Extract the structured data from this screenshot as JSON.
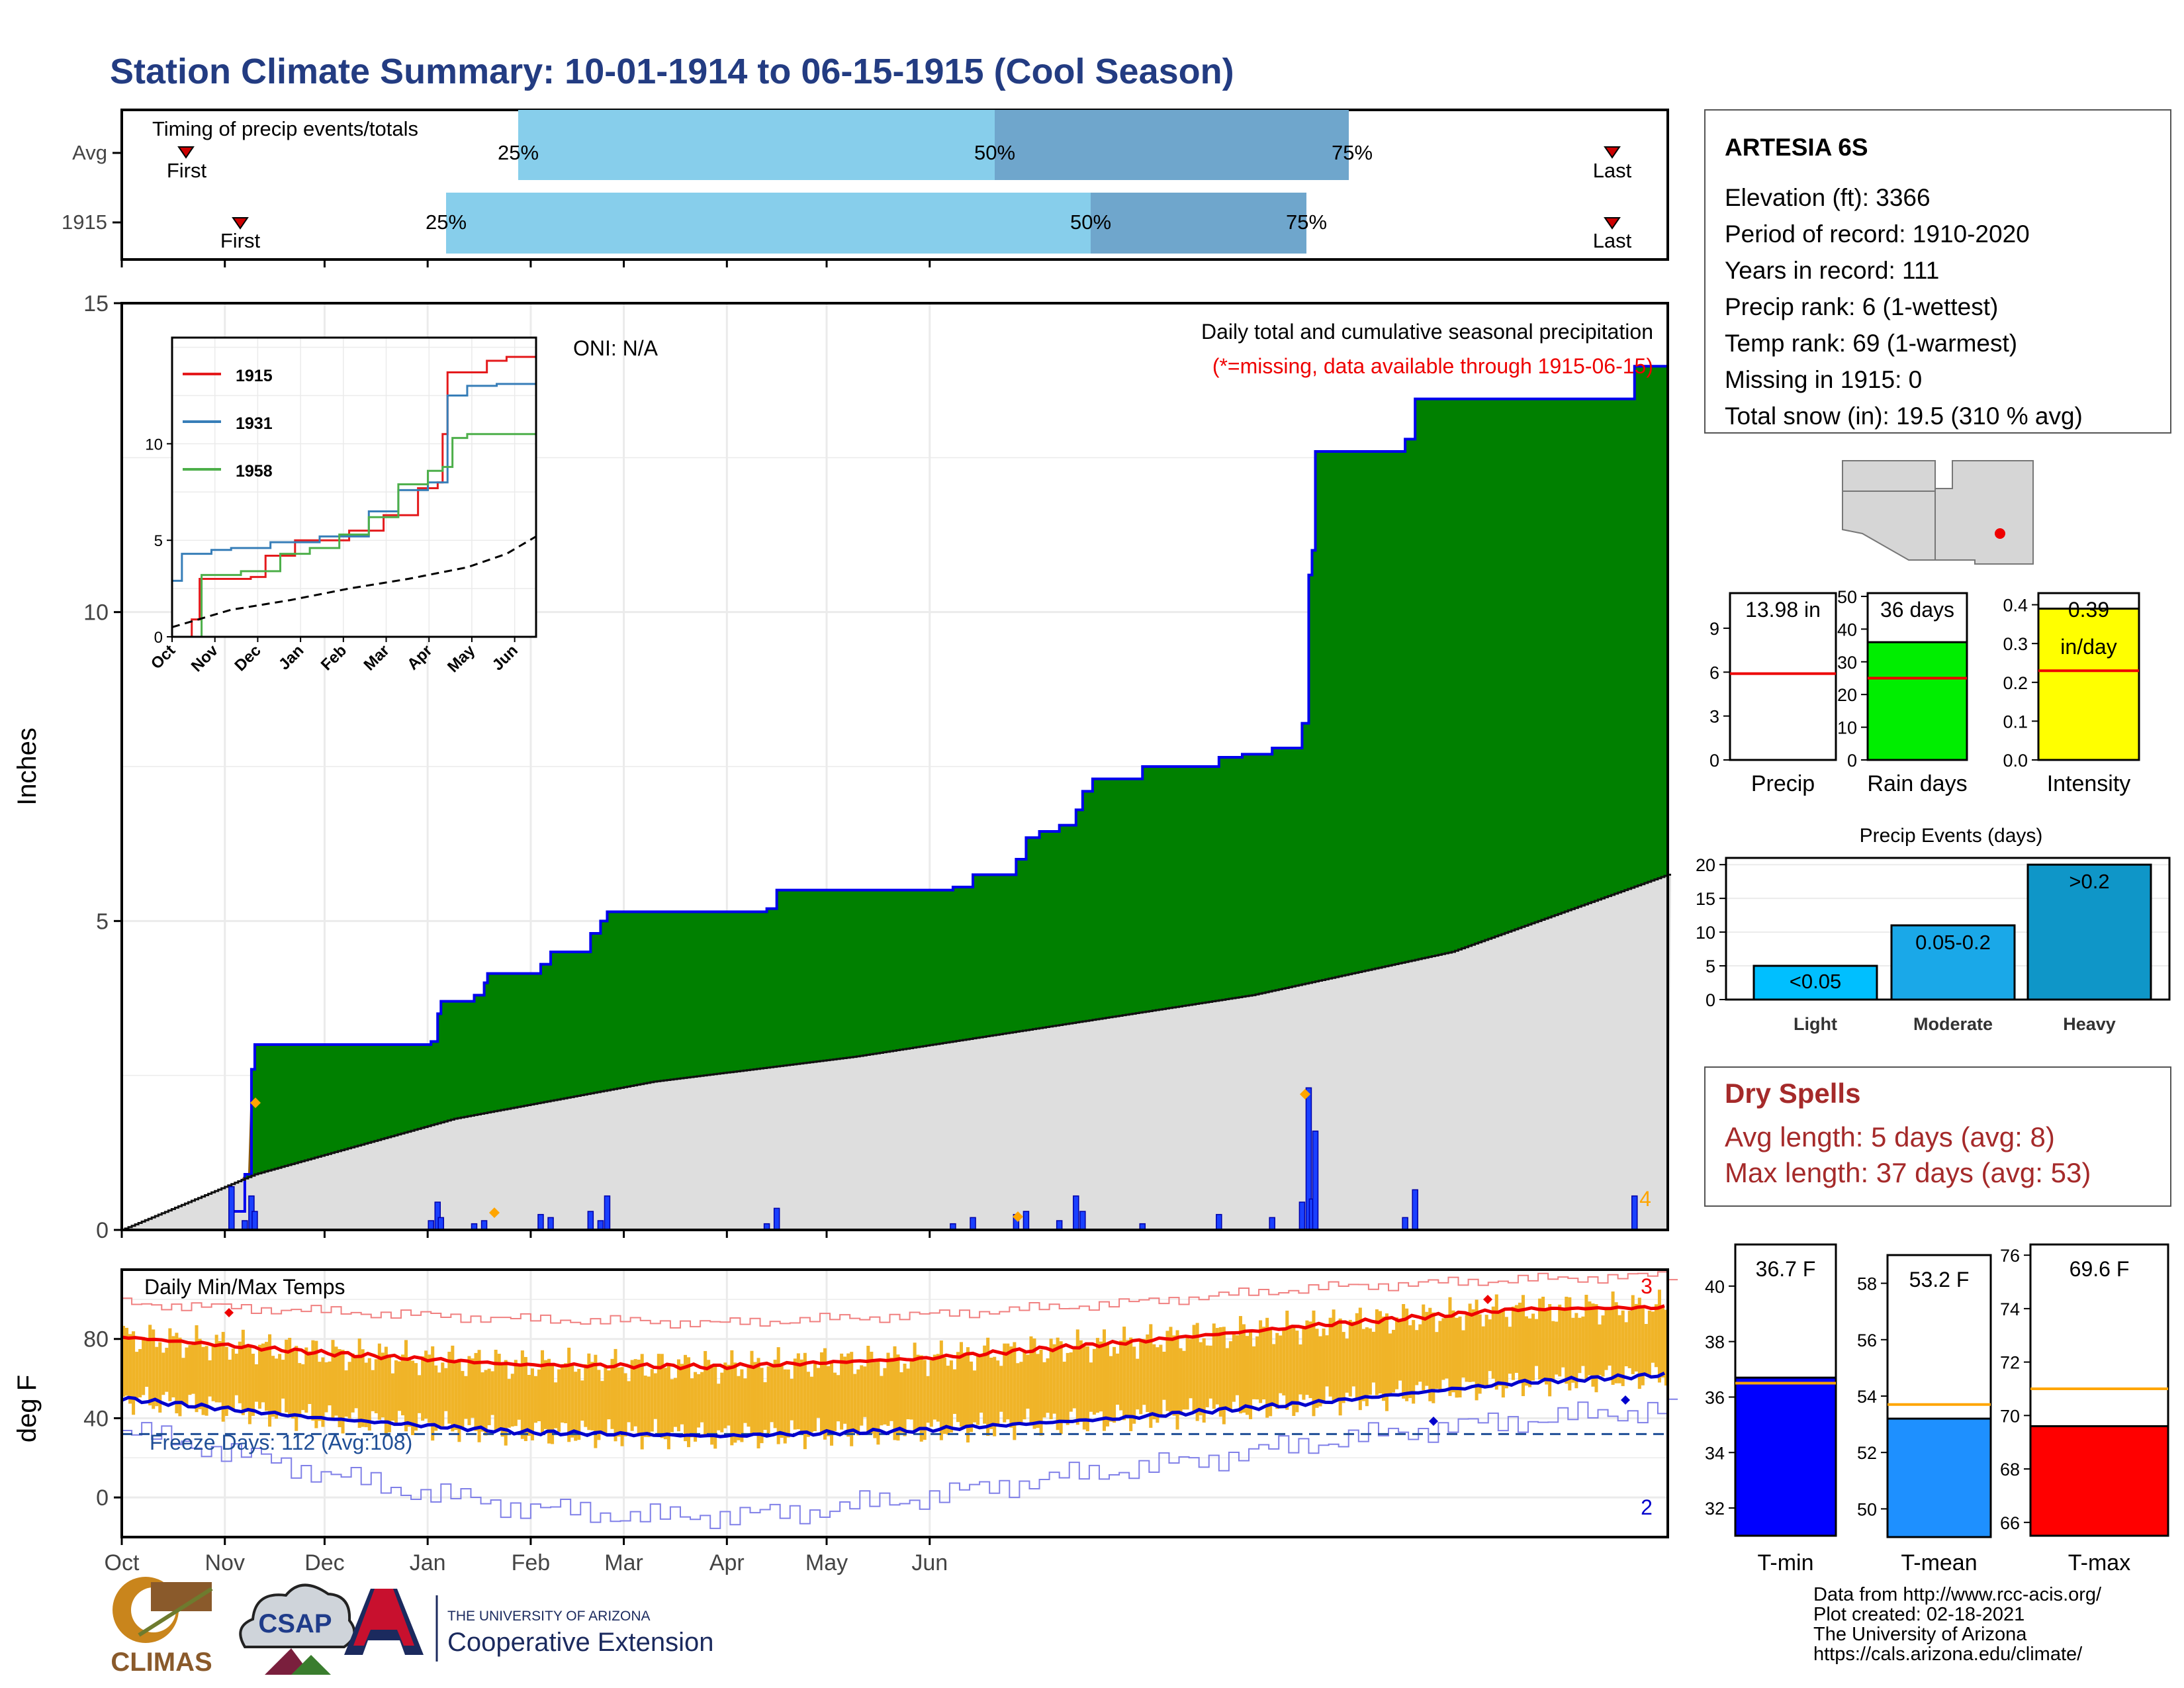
{
  "title": "Station Climate Summary: 10-01-1914 to 06-15-1915 (Cool Season)",
  "timing": {
    "label": "Timing of precip events/totals",
    "rows": [
      {
        "label": "Avg",
        "first_label": "First",
        "last_label": "Last",
        "p25": "25%",
        "p50": "50%",
        "p75": "75%"
      },
      {
        "label": "1915",
        "first_label": "First",
        "last_label": "Last",
        "p25": "25%",
        "p50": "50%",
        "p75": "75%"
      }
    ]
  },
  "precip_panel": {
    "ylabel": "Inches",
    "oni": "ONI: N/A",
    "desc": "Daily total and cumulative seasonal precipitation",
    "missing_note": "(*=missing, data available through 1915-06-15)",
    "count_label": "4",
    "yticks": [
      "0",
      "5",
      "10",
      "15"
    ]
  },
  "inset": {
    "legend": [
      "1915",
      "1931",
      "1958"
    ],
    "yticks": [
      "0",
      "5",
      "10"
    ],
    "xticks": [
      "Oct",
      "Nov",
      "Dec",
      "Jan",
      "Feb",
      "Mar",
      "Apr",
      "May",
      "Jun"
    ]
  },
  "temp_panel": {
    "title": "Daily Min/Max Temps",
    "ylabel": "deg F",
    "yticks": [
      "0",
      "40",
      "80"
    ],
    "freeze": "Freeze Days: 112 (Avg:108)",
    "count_max": "3",
    "count_min": "2"
  },
  "xticks": [
    "Oct",
    "Nov",
    "Dec",
    "Jan",
    "Feb",
    "Mar",
    "Apr",
    "May",
    "Jun"
  ],
  "station": {
    "name": "ARTESIA 6S",
    "lines": [
      "Elevation (ft): 3366",
      "Period of record: 1910-2020",
      "Years in record: 111",
      "Precip rank: 6 (1-wettest)",
      "Temp rank: 69 (1-warmest)",
      "Missing in 1915: 0",
      "Total snow (in): 19.5 (310 % avg)"
    ]
  },
  "small_bars": [
    {
      "label": "Precip",
      "value_text": "13.98 in",
      "yticks": [
        "0",
        "3",
        "6",
        "9"
      ]
    },
    {
      "label": "Rain days",
      "value_text": "36 days",
      "yticks": [
        "0",
        "10",
        "20",
        "30",
        "40",
        "50"
      ]
    },
    {
      "label": "Intensity",
      "value_text": "0.39",
      "value_text2": "in/day",
      "yticks": [
        "0.0",
        "0.1",
        "0.2",
        "0.3",
        "0.4"
      ]
    }
  ],
  "events": {
    "title": "Precip Events (days)",
    "categories": [
      "Light",
      "Moderate",
      "Heavy"
    ],
    "labels": [
      "<0.05",
      "0.05-0.2",
      ">0.2"
    ],
    "yticks": [
      "0",
      "5",
      "10",
      "15",
      "20"
    ]
  },
  "dry": {
    "title": "Dry Spells",
    "avg": "Avg length: 5 days (avg: 8)",
    "max": "Max length: 37 days (avg: 53)"
  },
  "temp_bars": [
    {
      "label": "T-min",
      "value_text": "36.7 F",
      "yticks": [
        "32",
        "34",
        "36",
        "38",
        "40"
      ]
    },
    {
      "label": "T-mean",
      "value_text": "53.2 F",
      "yticks": [
        "50",
        "52",
        "54",
        "56",
        "58"
      ]
    },
    {
      "label": "T-max",
      "value_text": "69.6 F",
      "yticks": [
        "66",
        "68",
        "70",
        "72",
        "74",
        "76"
      ]
    }
  ],
  "credits": [
    "Data from http://www.rcc-acis.org/",
    "Plot created: 02-18-2021",
    "The University of Arizona",
    "https://cals.arizona.edu/climate/"
  ],
  "logos": {
    "climas": "CLIMAS",
    "csap": "CSAP",
    "ua_small": "THE UNIVERSITY OF ARIZONA",
    "ua_big": "Cooperative Extension"
  },
  "chart_data": [
    {
      "type": "area",
      "name": "cumulative seasonal precipitation",
      "x_unit": "day of season (0 = 10-01-1914)",
      "cumulative_steps": [
        [
          0,
          0
        ],
        [
          33,
          0.3
        ],
        [
          37,
          0.9
        ],
        [
          39,
          2.6
        ],
        [
          40,
          3.0
        ],
        [
          93,
          3.05
        ],
        [
          95,
          3.5
        ],
        [
          96,
          3.7
        ],
        [
          106,
          3.8
        ],
        [
          109,
          4.0
        ],
        [
          110,
          4.15
        ],
        [
          126,
          4.3
        ],
        [
          129,
          4.5
        ],
        [
          141,
          4.8
        ],
        [
          144,
          5.0
        ],
        [
          146,
          5.15
        ],
        [
          194,
          5.2
        ],
        [
          197,
          5.5
        ],
        [
          241,
          5.5
        ],
        [
          250,
          5.55
        ],
        [
          256,
          5.75
        ],
        [
          269,
          6.0
        ],
        [
          272,
          6.35
        ],
        [
          276,
          6.45
        ],
        [
          282,
          6.55
        ],
        [
          287,
          6.8
        ],
        [
          289,
          7.1
        ],
        [
          292,
          7.3
        ],
        [
          307,
          7.5
        ],
        [
          330,
          7.65
        ],
        [
          337,
          7.7
        ],
        [
          346,
          7.8
        ],
        [
          355,
          8.2
        ],
        [
          357,
          10.6
        ],
        [
          358,
          11.0
        ],
        [
          359,
          12.6
        ],
        [
          386,
          12.8
        ],
        [
          389,
          13.45
        ],
        [
          454,
          13.45
        ],
        [
          455,
          13.98
        ],
        [
          465,
          13.98
        ]
      ],
      "average_cumulative": [
        [
          0,
          0
        ],
        [
          40,
          0.9
        ],
        [
          100,
          1.8
        ],
        [
          160,
          2.4
        ],
        [
          220,
          2.8
        ],
        [
          280,
          3.3
        ],
        [
          340,
          3.8
        ],
        [
          400,
          4.5
        ],
        [
          465,
          5.75
        ]
      ],
      "daily_events": [
        [
          33,
          0.7
        ],
        [
          37,
          0.15
        ],
        [
          39,
          0.55
        ],
        [
          40,
          0.3
        ],
        [
          93,
          0.15
        ],
        [
          95,
          0.45
        ],
        [
          96,
          0.2
        ],
        [
          106,
          0.1
        ],
        [
          109,
          0.15
        ],
        [
          126,
          0.25
        ],
        [
          129,
          0.2
        ],
        [
          141,
          0.3
        ],
        [
          144,
          0.15
        ],
        [
          146,
          0.55
        ],
        [
          194,
          0.1
        ],
        [
          197,
          0.35
        ],
        [
          250,
          0.1
        ],
        [
          256,
          0.2
        ],
        [
          269,
          0.25
        ],
        [
          272,
          0.3
        ],
        [
          282,
          0.15
        ],
        [
          287,
          0.55
        ],
        [
          289,
          0.3
        ],
        [
          307,
          0.1
        ],
        [
          330,
          0.25
        ],
        [
          346,
          0.2
        ],
        [
          355,
          0.45
        ],
        [
          357,
          2.3
        ],
        [
          358,
          0.5
        ],
        [
          359,
          1.6
        ],
        [
          386,
          0.2
        ],
        [
          389,
          0.65
        ],
        [
          455,
          0.55
        ]
      ],
      "ylim": [
        0,
        15
      ]
    },
    {
      "type": "line",
      "name": "inset cumulative precipitation",
      "series": [
        {
          "name": "1915",
          "points": [
            [
              0,
              0
            ],
            [
              20,
              0.9
            ],
            [
              28,
              3.0
            ],
            [
              80,
              3.1
            ],
            [
              95,
              4.2
            ],
            [
              125,
              5.0
            ],
            [
              180,
              5.5
            ],
            [
              215,
              6.3
            ],
            [
              250,
              7.7
            ],
            [
              270,
              8.0
            ],
            [
              275,
              10.5
            ],
            [
              280,
              13.7
            ],
            [
              320,
              14.3
            ],
            [
              340,
              14.5
            ],
            [
              370,
              14.5
            ]
          ]
        },
        {
          "name": "1931",
          "points": [
            [
              0,
              2.9
            ],
            [
              10,
              4.3
            ],
            [
              40,
              4.5
            ],
            [
              60,
              4.6
            ],
            [
              100,
              4.9
            ],
            [
              150,
              5.2
            ],
            [
              200,
              6.5
            ],
            [
              230,
              7.6
            ],
            [
              260,
              8.0
            ],
            [
              280,
              12.5
            ],
            [
              300,
              13.0
            ],
            [
              330,
              13.1
            ],
            [
              370,
              14.0
            ]
          ]
        },
        {
          "name": "1958",
          "points": [
            [
              0,
              0
            ],
            [
              30,
              3.2
            ],
            [
              70,
              3.4
            ],
            [
              110,
              4.3
            ],
            [
              140,
              4.6
            ],
            [
              170,
              5.3
            ],
            [
              200,
              6.2
            ],
            [
              230,
              7.9
            ],
            [
              260,
              8.6
            ],
            [
              275,
              8.8
            ],
            [
              285,
              10.3
            ],
            [
              300,
              10.5
            ],
            [
              370,
              10.5
            ]
          ]
        },
        {
          "name": "average",
          "points": [
            [
              0,
              0.5
            ],
            [
              60,
              1.4
            ],
            [
              120,
              1.9
            ],
            [
              180,
              2.5
            ],
            [
              240,
              3.0
            ],
            [
              300,
              3.6
            ],
            [
              340,
              4.3
            ],
            [
              370,
              5.2
            ]
          ]
        }
      ],
      "xlim": [
        0,
        370
      ],
      "ylim": [
        0,
        15.5
      ]
    },
    {
      "type": "line",
      "name": "daily temperatures (deg F)",
      "avg_max": [
        [
          0,
          81
        ],
        [
          60,
          73
        ],
        [
          120,
          67
        ],
        [
          180,
          66
        ],
        [
          240,
          70
        ],
        [
          300,
          78
        ],
        [
          360,
          87
        ],
        [
          420,
          95
        ],
        [
          465,
          96
        ]
      ],
      "avg_min": [
        [
          0,
          50
        ],
        [
          60,
          40
        ],
        [
          120,
          33
        ],
        [
          180,
          31
        ],
        [
          240,
          34
        ],
        [
          300,
          40
        ],
        [
          360,
          48
        ],
        [
          420,
          58
        ],
        [
          465,
          62
        ]
      ],
      "record_max": [
        [
          0,
          98
        ],
        [
          60,
          94
        ],
        [
          120,
          90
        ],
        [
          180,
          88
        ],
        [
          240,
          92
        ],
        [
          300,
          98
        ],
        [
          360,
          106
        ],
        [
          420,
          110
        ],
        [
          465,
          112
        ]
      ],
      "record_min": [
        [
          0,
          34
        ],
        [
          40,
          20
        ],
        [
          80,
          5
        ],
        [
          120,
          -5
        ],
        [
          160,
          -10
        ],
        [
          200,
          -8
        ],
        [
          240,
          0
        ],
        [
          280,
          10
        ],
        [
          320,
          18
        ],
        [
          360,
          28
        ],
        [
          400,
          36
        ],
        [
          465,
          45
        ]
      ],
      "freeze_line": 32,
      "ylim": [
        -20,
        115
      ]
    },
    {
      "type": "bar",
      "categories": [
        "Precip",
        "Rain days",
        "Intensity"
      ],
      "values": [
        13.98,
        36,
        0.39
      ],
      "averages": [
        5.9,
        25,
        0.23
      ],
      "ylims": [
        [
          0,
          11.4
        ],
        [
          0,
          51
        ],
        [
          0,
          0.43
        ]
      ]
    },
    {
      "type": "bar",
      "title": "Precip Events (days)",
      "categories": [
        "Light",
        "Moderate",
        "Heavy"
      ],
      "values": [
        5,
        11,
        20
      ],
      "ylim": [
        0,
        21
      ]
    },
    {
      "type": "bar",
      "categories": [
        "T-min",
        "T-mean",
        "T-max"
      ],
      "values": [
        36.7,
        53.2,
        69.6
      ],
      "averages": [
        36.5,
        53.7,
        71.0
      ],
      "ylims": [
        [
          31,
          41.5
        ],
        [
          49,
          59
        ],
        [
          65.5,
          76.4
        ]
      ]
    }
  ]
}
